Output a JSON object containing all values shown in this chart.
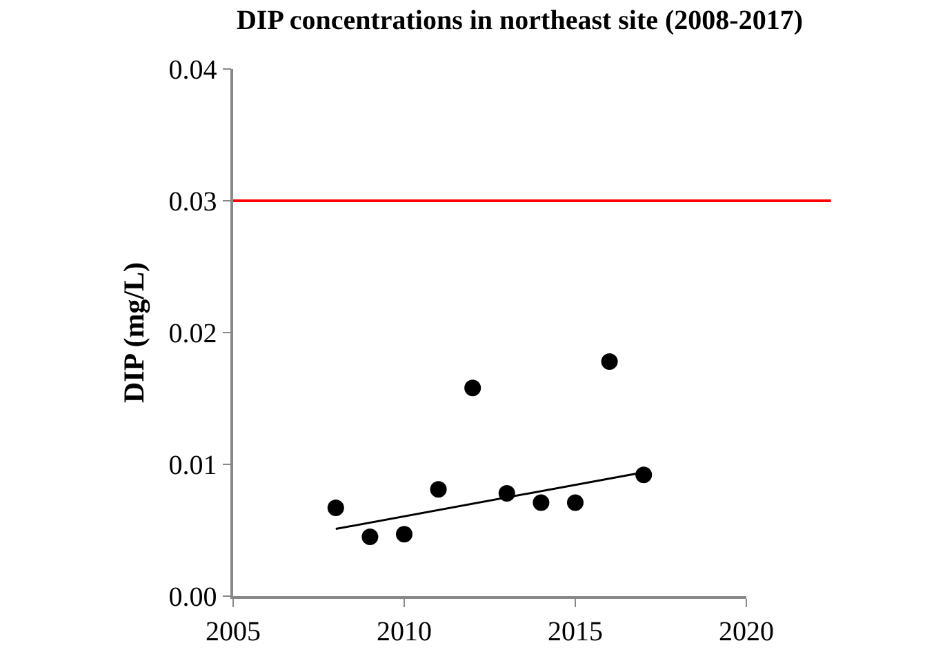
{
  "chart_data": {
    "type": "scatter",
    "title": "DIP concentrations in northeast site (2008-2017)",
    "ylabel": "DIP (mg/L)",
    "x": [
      2008,
      2009,
      2010,
      2011,
      2012,
      2013,
      2014,
      2015,
      2016,
      2017
    ],
    "series": [
      {
        "marker": "circle",
        "color": "#000000",
        "values": [
          0.0067,
          0.0045,
          0.0047,
          0.0081,
          0.0158,
          0.0078,
          0.0071,
          0.0071,
          0.0178,
          0.0092
        ]
      },
      {
        "type": "line",
        "color": "#000000",
        "x": [
          2008,
          2017
        ],
        "values": [
          0.0051,
          0.0094
        ]
      }
    ],
    "xlim": [
      2005,
      2020
    ],
    "xticks": [
      2005,
      2010,
      2015,
      2020
    ],
    "ylim": [
      0,
      0.04
    ],
    "yticks": [
      {
        "value": 0,
        "label": "0.00"
      },
      {
        "value": 0.01,
        "label": "0.01"
      },
      {
        "value": 0.02,
        "label": "0.02"
      },
      {
        "value": 0.03,
        "label": "0.03"
      },
      {
        "value": 0.04,
        "label": "0.04"
      }
    ],
    "ref_lines": [
      {
        "axis": "y",
        "value": 0.03,
        "color": "#ff0000"
      }
    ],
    "grid": false
  }
}
